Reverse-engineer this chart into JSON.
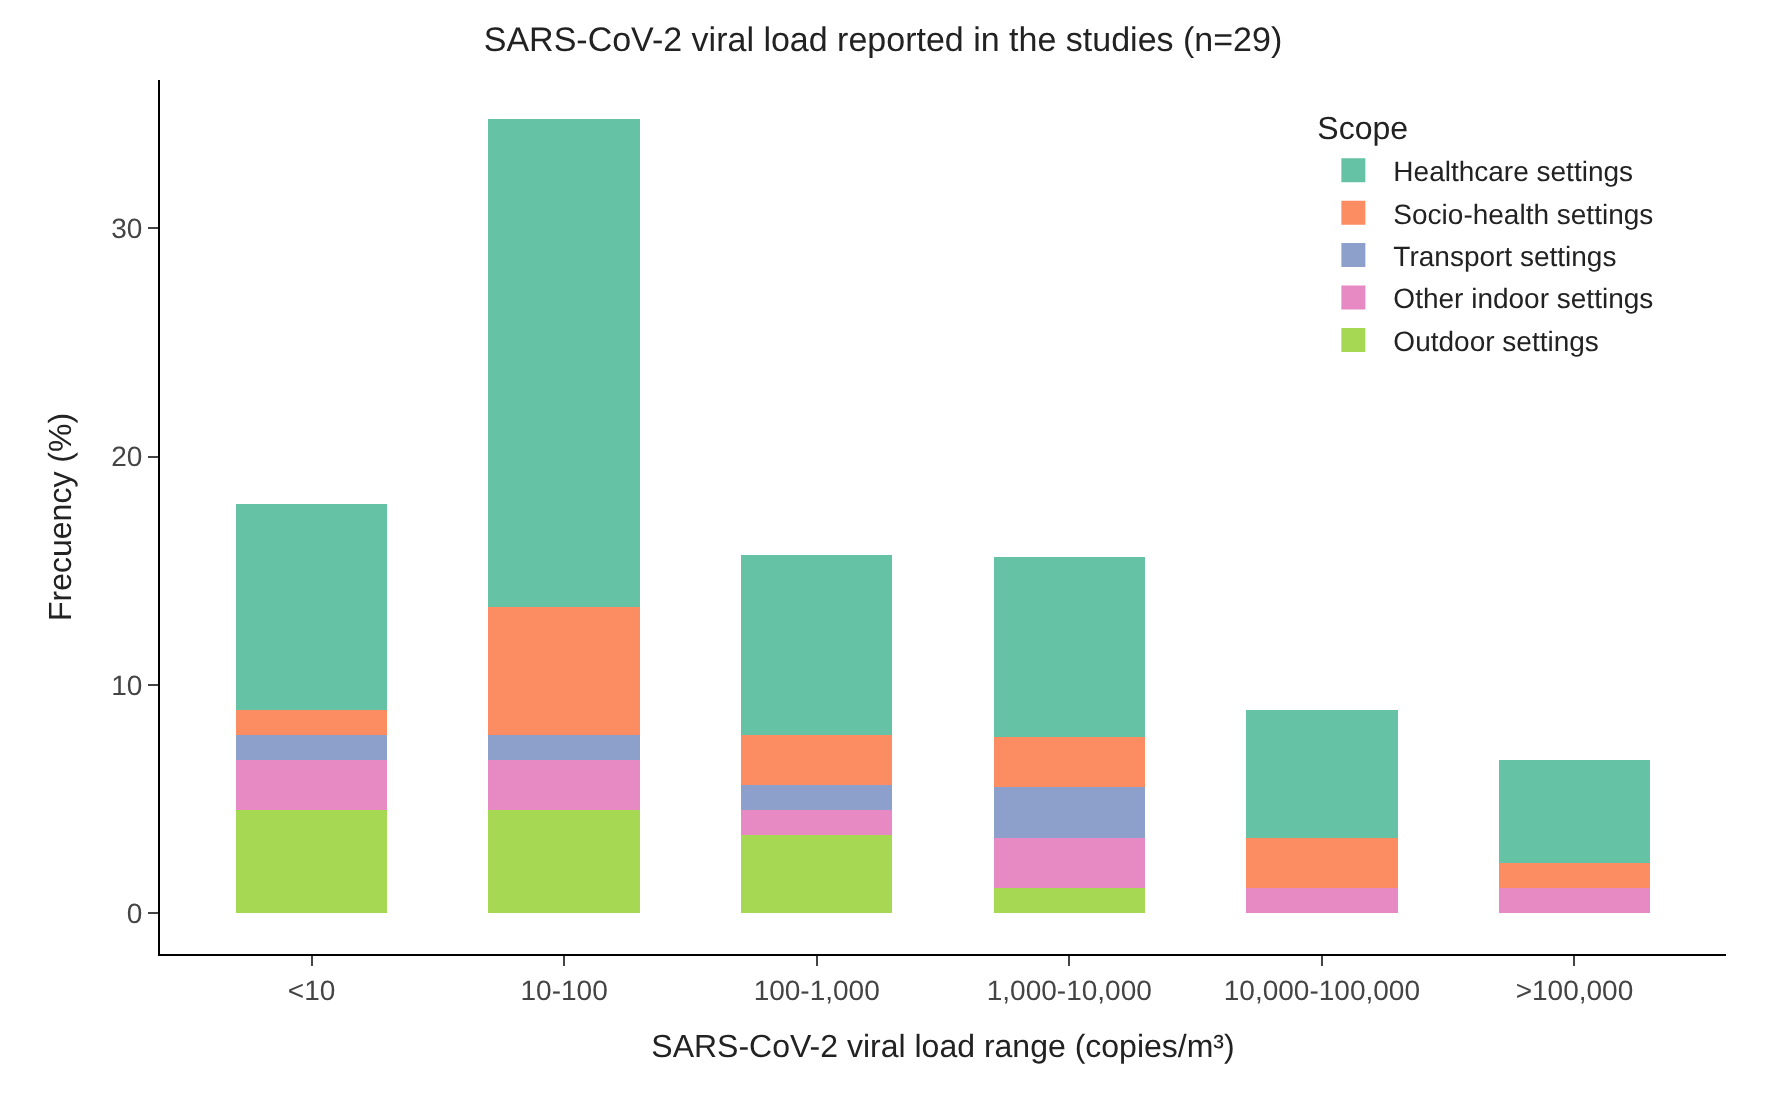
{
  "chart_data": {
    "type": "bar",
    "stacked": true,
    "title": "SARS-CoV-2 viral load reported in the studies (n=29)",
    "xlabel": "SARS-CoV-2 viral load range (copies/m³)",
    "ylabel": "Frecuency (%)",
    "legend_title": "Scope",
    "legend": "top right",
    "categories": [
      "<10",
      "10-100",
      "100-1,000",
      "1,000-10,000",
      "10,000-100,000",
      ">100,000"
    ],
    "ylim": [
      -1.8,
      36.5
    ],
    "yticks": [
      0,
      10,
      20,
      30
    ],
    "series": [
      {
        "name": "Outdoor settings",
        "color": "#a6d854",
        "values": [
          4.5,
          4.5,
          3.4,
          1.1,
          0,
          0
        ]
      },
      {
        "name": "Other indoor settings",
        "color": "#e78ac3",
        "values": [
          2.2,
          2.2,
          1.1,
          2.2,
          1.1,
          1.1
        ]
      },
      {
        "name": "Transport settings",
        "color": "#8da0cb",
        "values": [
          1.1,
          1.1,
          1.1,
          2.2,
          0,
          0
        ]
      },
      {
        "name": "Socio-health settings",
        "color": "#fc8d62",
        "values": [
          1.1,
          5.6,
          2.2,
          2.2,
          2.2,
          1.1
        ]
      },
      {
        "name": "Healthcare settings",
        "color": "#66c2a5",
        "values": [
          9.0,
          21.4,
          7.9,
          7.9,
          5.6,
          4.5
        ]
      }
    ]
  }
}
